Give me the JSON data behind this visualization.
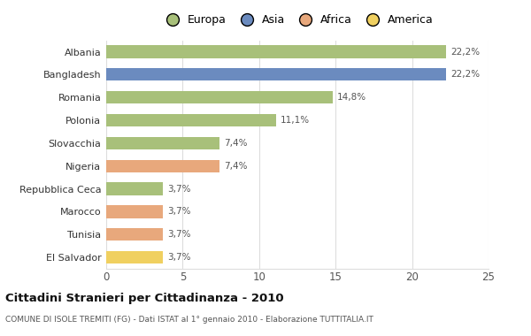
{
  "categories": [
    "Albania",
    "Bangladesh",
    "Romania",
    "Polonia",
    "Slovacchia",
    "Nigeria",
    "Repubblica Ceca",
    "Marocco",
    "Tunisia",
    "El Salvador"
  ],
  "values": [
    22.2,
    22.2,
    14.8,
    11.1,
    7.4,
    7.4,
    3.7,
    3.7,
    3.7,
    3.7
  ],
  "labels": [
    "22,2%",
    "22,2%",
    "14,8%",
    "11,1%",
    "7,4%",
    "7,4%",
    "3,7%",
    "3,7%",
    "3,7%",
    "3,7%"
  ],
  "colors": [
    "#a8c07a",
    "#6b8bbf",
    "#a8c07a",
    "#a8c07a",
    "#a8c07a",
    "#e8a87c",
    "#a8c07a",
    "#e8a87c",
    "#e8a87c",
    "#f0d060"
  ],
  "legend_labels": [
    "Europa",
    "Asia",
    "Africa",
    "America"
  ],
  "legend_colors": [
    "#a8c07a",
    "#6b8bbf",
    "#e8a87c",
    "#f0d060"
  ],
  "title": "Cittadini Stranieri per Cittadinanza - 2010",
  "subtitle": "COMUNE DI ISOLE TREMITI (FG) - Dati ISTAT al 1° gennaio 2010 - Elaborazione TUTTITALIA.IT",
  "xlim": [
    0,
    25
  ],
  "xticks": [
    0,
    5,
    10,
    15,
    20,
    25
  ],
  "bg_color": "#ffffff",
  "grid_color": "#dddddd",
  "bar_height": 0.55
}
